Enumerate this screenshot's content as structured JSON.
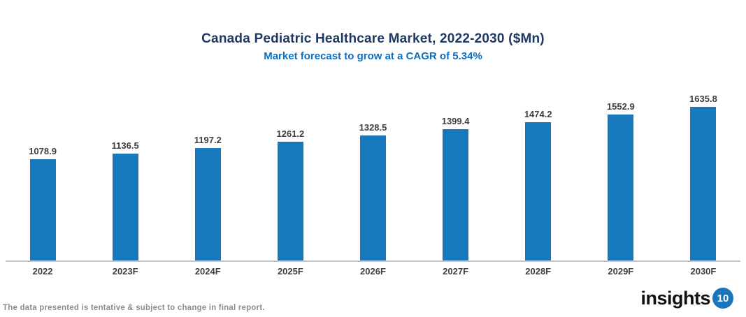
{
  "chart_data": {
    "type": "bar",
    "title": "Canada Pediatric Healthcare Market, 2022-2030 ($Mn)",
    "subtitle": "Market forecast to grow at a CAGR of 5.34%",
    "categories": [
      "2022",
      "2023F",
      "2024F",
      "2025F",
      "2026F",
      "2027F",
      "2028F",
      "2029F",
      "2030F"
    ],
    "values": [
      1078.9,
      1136.5,
      1197.2,
      1261.2,
      1328.5,
      1399.4,
      1474.2,
      1552.9,
      1635.8
    ],
    "xlabel": "",
    "ylabel": "",
    "ylim": [
      0,
      1700
    ],
    "grid": false,
    "legend": false,
    "value_labels": true,
    "bar_color": "#1878BE"
  },
  "footer": {
    "note": "The data presented is tentative & subject to change in final report.",
    "logo_text": "insights",
    "logo_badge": "10"
  },
  "colors": {
    "title": "#1F3864",
    "subtitle": "#0D6FC1",
    "bar": "#1878BE",
    "axis_line": "#C6C6C6",
    "label": "#3F3F3F",
    "note": "#8E8E8E",
    "logo_badge_bg": "#1B75BB"
  }
}
